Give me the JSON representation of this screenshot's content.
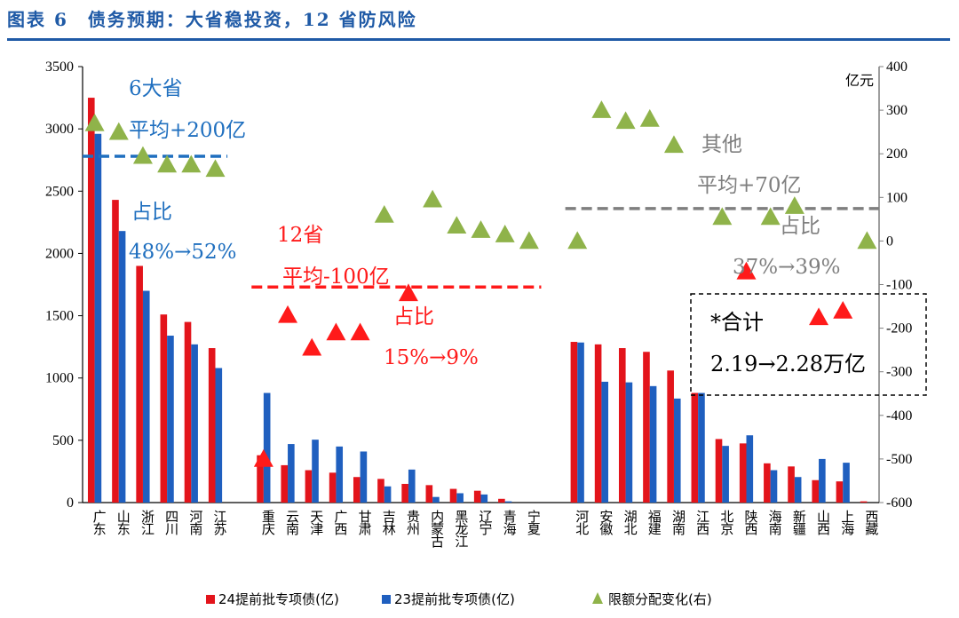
{
  "title": "图表 6　债务预期：大省稳投资，12 省防风险",
  "unit_right": "亿元",
  "colors": {
    "title": "#1f5aa6",
    "series_24": "#e3141b",
    "series_23": "#1f5fbf",
    "change": "#8fb34a",
    "change_red": "#ff1a1a",
    "group_big": "#1f6fbf",
    "group_12": "#ff1a1a",
    "group_other": "#7f7f7f"
  },
  "annotations": {
    "big_title": "6大省",
    "big_avg": "平均+200亿",
    "big_share_label": "占比",
    "big_share": "48%→52%",
    "mid_title": "12省",
    "mid_avg": "平均-100亿",
    "mid_share_label": "占比",
    "mid_share": "15%→9%",
    "other_title": "其他",
    "other_avg": "平均+70亿",
    "other_share_label": "占比",
    "other_share": "37%→39%",
    "total_title": "*合计",
    "total_value": "2.19→2.28万亿"
  },
  "chart_data": {
    "type": "bar",
    "categories": [
      "广东",
      "山东",
      "浙江",
      "四川",
      "河南",
      "江苏",
      "",
      "重庆",
      "云南",
      "天津",
      "广西",
      "甘肃",
      "吉林",
      "贵州",
      "内蒙古",
      "黑龙江",
      "辽宁",
      "青海",
      "宁夏",
      "",
      "河北",
      "安徽",
      "湖北",
      "福建",
      "湖南",
      "江西",
      "北京",
      "陕西",
      "海南",
      "新疆",
      "山西",
      "上海",
      "西藏"
    ],
    "series": [
      {
        "name": "24提前批专项债(亿)",
        "axis": "left",
        "values": [
          3250,
          2430,
          1900,
          1510,
          1450,
          1240,
          null,
          380,
          300,
          260,
          240,
          205,
          190,
          150,
          140,
          110,
          95,
          30,
          0,
          null,
          1290,
          1270,
          1240,
          1210,
          1060,
          880,
          510,
          475,
          315,
          290,
          180,
          170,
          10
        ]
      },
      {
        "name": "23提前批专项债(亿)",
        "axis": "left",
        "values": [
          2960,
          2180,
          1700,
          1340,
          1270,
          1080,
          null,
          880,
          470,
          505,
          450,
          410,
          130,
          265,
          45,
          75,
          65,
          10,
          0,
          null,
          1285,
          970,
          965,
          935,
          835,
          880,
          455,
          540,
          260,
          205,
          350,
          320,
          0
        ]
      },
      {
        "name": "限额分配变化(右)",
        "axis": "right",
        "type": "scatter",
        "values": [
          270,
          250,
          195,
          175,
          175,
          165,
          null,
          -500,
          -170,
          -245,
          -210,
          -210,
          60,
          -120,
          95,
          35,
          25,
          15,
          0,
          null,
          0,
          300,
          275,
          280,
          220,
          null,
          55,
          -70,
          55,
          80,
          -175,
          -160,
          0
        ]
      }
    ],
    "right_marker_color": [
      "g",
      "g",
      "g",
      "g",
      "g",
      "g",
      null,
      "r",
      "r",
      "r",
      "r",
      "r",
      "g",
      "r",
      "g",
      "g",
      "g",
      "g",
      "g",
      null,
      "g",
      "g",
      "g",
      "g",
      "g",
      null,
      "g",
      "r",
      "g",
      "g",
      "r",
      "r",
      "g"
    ],
    "left_axis": {
      "min": 0,
      "max": 3500,
      "ticks": [
        0,
        500,
        1000,
        1500,
        2000,
        2500,
        3000,
        3500
      ]
    },
    "right_axis": {
      "min": -600,
      "max": 400,
      "ticks": [
        -600,
        -500,
        -400,
        -300,
        -200,
        -100,
        0,
        100,
        200,
        300,
        400
      ]
    },
    "averages": [
      {
        "group": "6大省",
        "left_value": 2780
      },
      {
        "group": "12省",
        "left_value": 1730
      },
      {
        "group": "其他",
        "left_value": 2360
      }
    ]
  },
  "legend": [
    {
      "label": "24提前批专项债(亿)"
    },
    {
      "label": "23提前批专项债(亿)"
    },
    {
      "label": "限额分配变化(右)"
    }
  ]
}
